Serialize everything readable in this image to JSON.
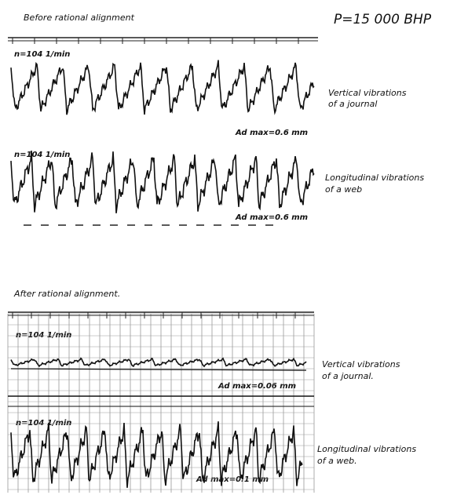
{
  "header": {
    "title": "P=15 000 BHP"
  },
  "before": {
    "title": "Before rational alignment",
    "traces": [
      {
        "label": [
          "Vertical vibrations",
          "of a journal"
        ],
        "speed": "n=104 1/min",
        "amplitude": "Ad max=0.6 mm"
      },
      {
        "label": [
          "Longitudinal vibrations",
          "of a web"
        ],
        "speed": "n=104 1/min",
        "amplitude": "Ad max=0.6 mm"
      }
    ]
  },
  "after": {
    "title": "After rational alignment.",
    "traces": [
      {
        "label": [
          "Vertical vibrations",
          "of a journal."
        ],
        "speed": "n=104 1/min",
        "amplitude": "Ad max=0.06 mm"
      },
      {
        "label": [
          "Longitudinal vibrations",
          "of a web."
        ],
        "speed": "n=104 1/min",
        "amplitude": "Ad max=0.1 mm"
      }
    ]
  }
}
